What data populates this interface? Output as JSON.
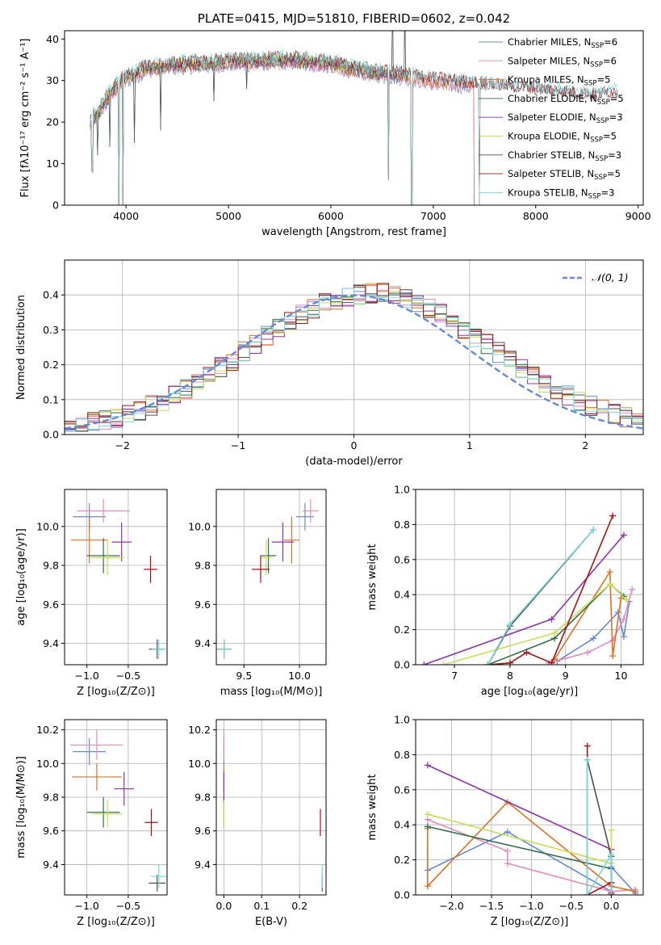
{
  "colors": {
    "chabrier_miles": "#6688dd",
    "salpeter_miles": "#e888bb",
    "kroupa_miles": "#e07020",
    "chabrier_elodie": "#2e6e4a",
    "salpeter_elodie": "#9030b0",
    "kroupa_elodie": "#c8e050",
    "chabrier_stelib": "#505050",
    "salpeter_stelib": "#aa1010",
    "kroupa_stelib": "#70d8e0",
    "normal": "#6688dd",
    "grid": "#b0b0b0"
  },
  "chart_data": [
    {
      "id": "spectrum",
      "type": "line",
      "title": "PLATE=0415, MJD=51810, FIBERID=0602, z=0.042",
      "xlabel": "wavelength [Angstrom, rest frame]",
      "ylabel": "Flux [fλ10⁻¹⁷ erg cm⁻² s⁻¹ A⁻¹]",
      "xlim": [
        3400,
        9050
      ],
      "ylim": [
        0,
        42
      ],
      "xticks": [
        "4000",
        "5000",
        "6000",
        "7000",
        "8000",
        "9000"
      ],
      "yticks": [
        "0",
        "10",
        "20",
        "30",
        "40"
      ],
      "grid": false,
      "legend_position": "top-right",
      "legend": [
        {
          "label": "Chabrier MILES, N",
          "sub": "SSP",
          "suffix": "=6",
          "color": "chabrier_miles"
        },
        {
          "label": "Salpeter MILES, N",
          "sub": "SSP",
          "suffix": "=6",
          "color": "salpeter_miles"
        },
        {
          "label": "Kroupa MILES, N",
          "sub": "SSP",
          "suffix": "=5",
          "color": "kroupa_miles"
        },
        {
          "label": "Chabrier ELODIE, N",
          "sub": "SSP",
          "suffix": "=5",
          "color": "chabrier_elodie"
        },
        {
          "label": "Salpeter ELODIE, N",
          "sub": "SSP",
          "suffix": "=3",
          "color": "salpeter_elodie"
        },
        {
          "label": "Kroupa ELODIE, N",
          "sub": "SSP",
          "suffix": "=5",
          "color": "kroupa_elodie"
        },
        {
          "label": "Chabrier STELIB, N",
          "sub": "SSP",
          "suffix": "=3",
          "color": "chabrier_stelib"
        },
        {
          "label": "Salpeter STELIB, N",
          "sub": "SSP",
          "suffix": "=5",
          "color": "salpeter_stelib"
        },
        {
          "label": "Kroupa STELIB, N",
          "sub": "SSP",
          "suffix": "=3",
          "color": "kroupa_stelib"
        }
      ],
      "continuum": [
        [
          3650,
          20
        ],
        [
          3750,
          23
        ],
        [
          3850,
          27
        ],
        [
          3950,
          30
        ],
        [
          4050,
          31
        ],
        [
          4200,
          33
        ],
        [
          4400,
          33.5
        ],
        [
          4600,
          34
        ],
        [
          4800,
          34
        ],
        [
          5000,
          34.5
        ],
        [
          5200,
          34.5
        ],
        [
          5400,
          34.8
        ],
        [
          5600,
          35
        ],
        [
          5800,
          34.5
        ],
        [
          6000,
          34
        ],
        [
          6200,
          33
        ],
        [
          6400,
          32
        ],
        [
          6600,
          31.5
        ],
        [
          6800,
          31
        ],
        [
          7000,
          30
        ],
        [
          7200,
          29.5
        ],
        [
          7400,
          29
        ],
        [
          7600,
          28.5
        ],
        [
          7800,
          28
        ],
        [
          8000,
          27.5
        ],
        [
          8200,
          27
        ],
        [
          8400,
          26.5
        ],
        [
          8600,
          26
        ],
        [
          8800,
          27
        ]
      ],
      "spikes": [
        [
          3670,
          8
        ],
        [
          3720,
          12
        ],
        [
          3840,
          14
        ],
        [
          3930,
          -2
        ],
        [
          3969,
          -2
        ],
        [
          4080,
          15
        ],
        [
          4340,
          18
        ],
        [
          4860,
          25
        ],
        [
          5175,
          28
        ],
        [
          6563,
          6
        ],
        [
          6600,
          50
        ],
        [
          6720,
          50
        ],
        [
          6790,
          -2
        ],
        [
          7450,
          -2
        ]
      ],
      "series": [
        {
          "color": "chabrier_miles",
          "xmin": 3650,
          "xmax": 7400
        },
        {
          "color": "salpeter_miles",
          "xmin": 3650,
          "xmax": 7400
        },
        {
          "color": "kroupa_miles",
          "xmin": 3650,
          "xmax": 7400
        },
        {
          "color": "chabrier_elodie",
          "xmin": 3650,
          "xmax": 6790
        },
        {
          "color": "salpeter_elodie",
          "xmin": 3650,
          "xmax": 6790
        },
        {
          "color": "kroupa_elodie",
          "xmin": 3650,
          "xmax": 6790
        },
        {
          "color": "chabrier_stelib",
          "xmin": 3650,
          "xmax": 8800
        },
        {
          "color": "salpeter_stelib",
          "xmin": 3650,
          "xmax": 8800
        },
        {
          "color": "kroupa_stelib",
          "xmin": 3650,
          "xmax": 8800
        }
      ]
    },
    {
      "id": "residual_hist",
      "type": "line",
      "xlabel": "(data-model)/error",
      "ylabel": "Normed distribution",
      "xlim": [
        -2.5,
        2.5
      ],
      "ylim": [
        0,
        0.5
      ],
      "xticks": [
        "−2",
        "−1",
        "0",
        "1",
        "2"
      ],
      "xtick_values": [
        -2,
        -1,
        0,
        1,
        2
      ],
      "yticks": [
        "0.0",
        "0.1",
        "0.2",
        "0.3",
        "0.4"
      ],
      "ytick_values": [
        0,
        0.1,
        0.2,
        0.3,
        0.4
      ],
      "grid": true,
      "legend_position": "top-right",
      "normal_label": "𝒩(0, 1)",
      "bin_width": 0.1,
      "series_colors": [
        "chabrier_miles",
        "salpeter_miles",
        "kroupa_miles",
        "chabrier_elodie",
        "salpeter_elodie",
        "kroupa_elodie",
        "chabrier_stelib",
        "salpeter_stelib",
        "kroupa_stelib"
      ]
    },
    {
      "id": "age_vs_z",
      "type": "scatter",
      "xlabel": "Z [log₁₀(Z/Z⊙)]",
      "ylabel": "age  [log₁₀(age/yr)]",
      "xlim": [
        -1.27,
        -0.03
      ],
      "ylim": [
        9.29,
        10.19
      ],
      "xticks": [
        "−1.0",
        "−0.5"
      ],
      "xtick_values": [
        -1.0,
        -0.5
      ],
      "yticks": [
        "9.4",
        "9.6",
        "9.8",
        "10.0"
      ],
      "ytick_values": [
        9.4,
        9.6,
        9.8,
        10.0
      ],
      "points": [
        {
          "color": "chabrier_miles",
          "x": -0.97,
          "xe": 0.2,
          "y": 10.05,
          "ye": 0.07
        },
        {
          "color": "salpeter_miles",
          "x": -0.8,
          "xe": 0.32,
          "y": 10.08,
          "ye": 0.06
        },
        {
          "color": "kroupa_miles",
          "x": -0.97,
          "xe": 0.22,
          "y": 9.93,
          "ye": 0.12
        },
        {
          "color": "chabrier_elodie",
          "x": -0.8,
          "xe": 0.2,
          "y": 9.85,
          "ye": 0.09
        },
        {
          "color": "salpeter_elodie",
          "x": -0.58,
          "xe": 0.12,
          "y": 9.92,
          "ye": 0.1
        },
        {
          "color": "kroupa_elodie",
          "x": -0.75,
          "xe": 0.2,
          "y": 9.84,
          "ye": 0.09
        },
        {
          "color": "chabrier_stelib",
          "x": -0.15,
          "xe": 0.1,
          "y": 9.37,
          "ye": 0.05
        },
        {
          "color": "salpeter_stelib",
          "x": -0.23,
          "xe": 0.08,
          "y": 9.78,
          "ye": 0.07
        },
        {
          "color": "kroupa_stelib",
          "x": -0.13,
          "xe": 0.08,
          "y": 9.37,
          "ye": 0.05
        }
      ]
    },
    {
      "id": "age_vs_mass",
      "type": "scatter",
      "xlabel": "mass [log₁₀(M/M⊙)]",
      "ylabel": "",
      "xlim": [
        9.25,
        10.24
      ],
      "ylim": [
        9.29,
        10.19
      ],
      "xticks": [
        "9.5",
        "10.0"
      ],
      "xtick_values": [
        9.5,
        10.0
      ],
      "yticks": [
        "9.4",
        "9.6",
        "9.8",
        "10.0"
      ],
      "ytick_values": [
        9.4,
        9.6,
        9.8,
        10.0
      ],
      "points": [
        {
          "color": "chabrier_miles",
          "x": 10.05,
          "xe": 0.08,
          "y": 10.05,
          "ye": 0.07
        },
        {
          "color": "salpeter_miles",
          "x": 10.1,
          "xe": 0.07,
          "y": 10.08,
          "ye": 0.06
        },
        {
          "color": "kroupa_miles",
          "x": 9.93,
          "xe": 0.07,
          "y": 9.93,
          "ye": 0.12
        },
        {
          "color": "chabrier_elodie",
          "x": 9.72,
          "xe": 0.07,
          "y": 9.85,
          "ye": 0.09
        },
        {
          "color": "salpeter_elodie",
          "x": 9.85,
          "xe": 0.1,
          "y": 9.92,
          "ye": 0.1
        },
        {
          "color": "kroupa_elodie",
          "x": 9.7,
          "xe": 0.05,
          "y": 9.84,
          "ye": 0.09
        },
        {
          "color": "chabrier_stelib",
          "x": 9.32,
          "xe": 0.07,
          "y": 9.37,
          "ye": 0.05
        },
        {
          "color": "salpeter_stelib",
          "x": 9.65,
          "xe": 0.08,
          "y": 9.78,
          "ye": 0.07
        },
        {
          "color": "kroupa_stelib",
          "x": 9.32,
          "xe": 0.07,
          "y": 9.37,
          "ye": 0.05
        }
      ]
    },
    {
      "id": "weight_vs_age",
      "type": "line",
      "xlabel": "age  [log₁₀(age/yr)]",
      "ylabel": "mass weight",
      "xlim": [
        6.3,
        10.4
      ],
      "ylim": [
        0,
        1.0
      ],
      "xticks": [
        "7",
        "8",
        "9",
        "10"
      ],
      "xtick_values": [
        7,
        8,
        9,
        10
      ],
      "yticks": [
        "0.0",
        "0.2",
        "0.4",
        "0.6",
        "0.8",
        "1.0"
      ],
      "ytick_values": [
        0,
        0.2,
        0.4,
        0.6,
        0.8,
        1.0
      ],
      "grid": true,
      "series": [
        {
          "color": "chabrier_miles",
          "x": [
            8.85,
            9.5,
            9.95,
            10.05,
            10.15
          ],
          "y": [
            0.02,
            0.15,
            0.3,
            0.16,
            0.36
          ]
        },
        {
          "color": "salpeter_miles",
          "x": [
            8.7,
            9.4,
            9.85,
            10.05,
            10.2
          ],
          "y": [
            0.01,
            0.07,
            0.14,
            0.26,
            0.43
          ]
        },
        {
          "color": "kroupa_miles",
          "x": [
            8.8,
            9.8,
            9.85,
            10.0
          ],
          "y": [
            0.03,
            0.53,
            0.05,
            0.38
          ]
        },
        {
          "color": "chabrier_elodie",
          "x": [
            7.6,
            8.8,
            9.8,
            10.05
          ],
          "y": [
            0.0,
            0.15,
            0.46,
            0.39
          ]
        },
        {
          "color": "salpeter_elodie",
          "x": [
            6.45,
            8.75,
            10.05
          ],
          "y": [
            0.0,
            0.26,
            0.74
          ]
        },
        {
          "color": "kroupa_elodie",
          "x": [
            6.8,
            8.8,
            9.8,
            10.1
          ],
          "y": [
            0.0,
            0.18,
            0.46,
            0.37
          ]
        },
        {
          "color": "chabrier_stelib",
          "x": [
            7.6,
            8.0,
            9.5
          ],
          "y": [
            0.0,
            0.22,
            0.77
          ]
        },
        {
          "color": "salpeter_stelib",
          "x": [
            7.6,
            8.0,
            8.3,
            8.75,
            9.85
          ],
          "y": [
            0.0,
            0.01,
            0.07,
            0.01,
            0.85
          ]
        },
        {
          "color": "kroupa_stelib",
          "x": [
            7.6,
            8.0,
            9.5
          ],
          "y": [
            0.0,
            0.23,
            0.77
          ]
        }
      ]
    },
    {
      "id": "mass_vs_z",
      "type": "scatter",
      "xlabel": "Z [log₁₀(Z/Z⊙)]",
      "ylabel": "mass [log₁₀(M/M⊙)]",
      "xlim": [
        -1.27,
        -0.03
      ],
      "ylim": [
        9.22,
        10.26
      ],
      "xticks": [
        "−1.0",
        "−0.5"
      ],
      "xtick_values": [
        -1.0,
        -0.5
      ],
      "yticks": [
        "9.4",
        "9.6",
        "9.8",
        "10.0",
        "10.2"
      ],
      "ytick_values": [
        9.4,
        9.6,
        9.8,
        10.0,
        10.2
      ],
      "points": [
        {
          "color": "chabrier_miles",
          "x": -0.97,
          "xe": 0.2,
          "y": 10.07,
          "ye": 0.08
        },
        {
          "color": "salpeter_miles",
          "x": -0.88,
          "xe": 0.32,
          "y": 10.11,
          "ye": 0.09
        },
        {
          "color": "kroupa_miles",
          "x": -0.88,
          "xe": 0.3,
          "y": 9.92,
          "ye": 0.08
        },
        {
          "color": "chabrier_elodie",
          "x": -0.8,
          "xe": 0.2,
          "y": 9.71,
          "ye": 0.09
        },
        {
          "color": "salpeter_elodie",
          "x": -0.55,
          "xe": 0.12,
          "y": 9.85,
          "ye": 0.1
        },
        {
          "color": "kroupa_elodie",
          "x": -0.75,
          "xe": 0.18,
          "y": 9.7,
          "ye": 0.08
        },
        {
          "color": "chabrier_stelib",
          "x": -0.15,
          "xe": 0.1,
          "y": 9.29,
          "ye": 0.05
        },
        {
          "color": "salpeter_stelib",
          "x": -0.22,
          "xe": 0.08,
          "y": 9.65,
          "ye": 0.08
        },
        {
          "color": "kroupa_stelib",
          "x": -0.13,
          "xe": 0.1,
          "y": 9.33,
          "ye": 0.07
        }
      ]
    },
    {
      "id": "mass_vs_ebv",
      "type": "scatter",
      "xlabel": "E(B-V)",
      "ylabel": "",
      "xlim": [
        -0.02,
        0.27
      ],
      "ylim": [
        9.22,
        10.26
      ],
      "xticks": [
        "0.0",
        "0.1",
        "0.2"
      ],
      "xtick_values": [
        0.0,
        0.1,
        0.2
      ],
      "yticks": [
        "9.4",
        "9.6",
        "9.8",
        "10.0",
        "10.2"
      ],
      "ytick_values": [
        9.4,
        9.6,
        9.8,
        10.0,
        10.2
      ],
      "points": [
        {
          "color": "chabrier_miles",
          "x": 0.0,
          "xe": 0.0,
          "y": 10.07,
          "ye": 0.08
        },
        {
          "color": "salpeter_miles",
          "x": 0.0,
          "xe": 0.0,
          "y": 10.11,
          "ye": 0.09
        },
        {
          "color": "kroupa_miles",
          "x": 0.0,
          "xe": 0.0,
          "y": 9.92,
          "ye": 0.08
        },
        {
          "color": "chabrier_elodie",
          "x": 0.0,
          "xe": 0.0,
          "y": 9.71,
          "ye": 0.09
        },
        {
          "color": "salpeter_elodie",
          "x": 0.0,
          "xe": 0.0,
          "y": 9.85,
          "ye": 0.1
        },
        {
          "color": "kroupa_elodie",
          "x": 0.0,
          "xe": 0.0,
          "y": 9.7,
          "ye": 0.08
        },
        {
          "color": "chabrier_stelib",
          "x": 0.26,
          "xe": 0.0,
          "y": 9.29,
          "ye": 0.05
        },
        {
          "color": "salpeter_stelib",
          "x": 0.255,
          "xe": 0.0,
          "y": 9.65,
          "ye": 0.08
        },
        {
          "color": "kroupa_stelib",
          "x": 0.26,
          "xe": 0.0,
          "y": 9.33,
          "ye": 0.07
        }
      ]
    },
    {
      "id": "weight_vs_z",
      "type": "line",
      "xlabel": "Z [log₁₀(Z/Z⊙)]",
      "ylabel": "mass weight",
      "xlim": [
        -2.45,
        0.4
      ],
      "ylim": [
        0,
        1.0
      ],
      "xticks": [
        "−2.0",
        "−1.5",
        "−1.0",
        "−0.5",
        "0.0"
      ],
      "xtick_values": [
        -2.0,
        -1.5,
        -1.0,
        -0.5,
        0.0
      ],
      "yticks": [
        "0.0",
        "0.2",
        "0.4",
        "0.6",
        "0.8",
        "1.0"
      ],
      "ytick_values": [
        0,
        0.2,
        0.4,
        0.6,
        0.8,
        1.0
      ],
      "grid": true,
      "series": [
        {
          "color": "chabrier_miles",
          "x": [
            -2.3,
            -1.3,
            0.0,
            0.0,
            0.3
          ],
          "y": [
            0.14,
            0.36,
            0.02,
            0.16,
            0.01
          ]
        },
        {
          "color": "salpeter_miles",
          "x": [
            -2.3,
            -1.3,
            -1.3,
            0.0,
            0.3
          ],
          "y": [
            0.43,
            0.25,
            0.18,
            0.02,
            0.03
          ]
        },
        {
          "color": "kroupa_miles",
          "x": [
            -2.3,
            -2.3,
            -1.3,
            0.0,
            0.3
          ],
          "y": [
            0.38,
            0.05,
            0.53,
            0.05,
            0.02
          ]
        },
        {
          "color": "chabrier_elodie",
          "x": [
            -2.3,
            0.0,
            0.0
          ],
          "y": [
            0.39,
            0.15,
            0.0
          ]
        },
        {
          "color": "salpeter_elodie",
          "x": [
            -2.3,
            0.0,
            0.0
          ],
          "y": [
            0.74,
            0.26,
            0.0
          ]
        },
        {
          "color": "kroupa_elodie",
          "x": [
            -2.3,
            0.0,
            0.0
          ],
          "y": [
            0.46,
            0.18,
            0.37
          ]
        },
        {
          "color": "chabrier_stelib",
          "x": [
            -0.3,
            -0.3,
            0.0,
            0.0
          ],
          "y": [
            0.0,
            0.77,
            0.22,
            0.0
          ]
        },
        {
          "color": "salpeter_stelib",
          "x": [
            -0.3,
            -0.3,
            0.0,
            0.0
          ],
          "y": [
            0.85,
            0.0,
            0.07,
            0.01
          ]
        },
        {
          "color": "kroupa_stelib",
          "x": [
            -0.3,
            -0.3,
            0.0,
            0.0
          ],
          "y": [
            0.77,
            0.0,
            0.23,
            0.0
          ]
        }
      ]
    }
  ]
}
